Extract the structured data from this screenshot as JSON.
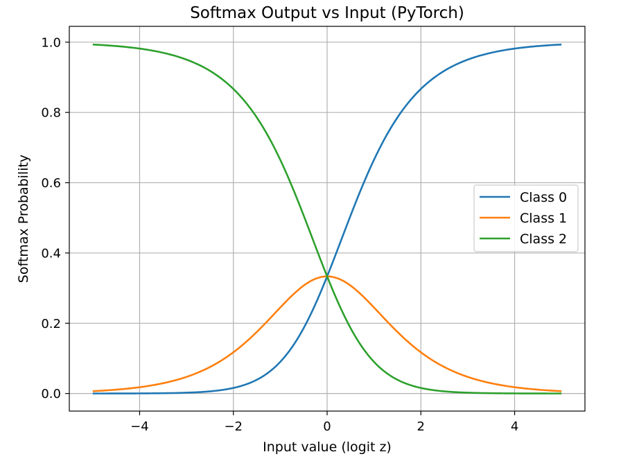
{
  "chart_data": {
    "type": "line",
    "title": "Softmax Output vs Input (PyTorch)",
    "xlabel": "Input value (logit z)",
    "ylabel": "Softmax Probability",
    "xlim": [
      -5.5,
      5.5
    ],
    "ylim": [
      -0.05,
      1.045
    ],
    "xticks": [
      -4,
      -2,
      0,
      2,
      4
    ],
    "xtick_labels": [
      "−4",
      "−2",
      "0",
      "2",
      "4"
    ],
    "yticks": [
      0.0,
      0.2,
      0.4,
      0.6,
      0.8,
      1.0
    ],
    "ytick_labels": [
      "0.0",
      "0.2",
      "0.4",
      "0.6",
      "0.8",
      "1.0"
    ],
    "grid": true,
    "legend_position": "center-right",
    "x": [
      -5,
      -4.5,
      -4,
      -3.5,
      -3,
      -2.5,
      -2,
      -1.5,
      -1,
      -0.5,
      0,
      0.5,
      1,
      1.5,
      2,
      2.5,
      3,
      3.5,
      4,
      4.5,
      5
    ],
    "series": [
      {
        "name": "Class 0",
        "color": "#1f77b4",
        "values": [
          0.0,
          0.0001,
          0.0003,
          0.0009,
          0.0024,
          0.0065,
          0.0159,
          0.0368,
          0.09,
          0.1863,
          0.3333,
          0.5065,
          0.6652,
          0.7856,
          0.8668,
          0.9158,
          0.9503,
          0.9693,
          0.9817,
          0.9888,
          0.9932
        ]
      },
      {
        "name": "Class 1",
        "color": "#ff7f0e",
        "values": [
          0.0067,
          0.011,
          0.018,
          0.0293,
          0.0474,
          0.0755,
          0.1173,
          0.1753,
          0.2447,
          0.3072,
          0.3333,
          0.3072,
          0.2447,
          0.1753,
          0.1173,
          0.0755,
          0.0474,
          0.0293,
          0.018,
          0.011,
          0.0067
        ]
      },
      {
        "name": "Class 2",
        "color": "#2ca02c",
        "values": [
          0.9932,
          0.9888,
          0.9817,
          0.9693,
          0.9503,
          0.9158,
          0.8668,
          0.7856,
          0.6652,
          0.5065,
          0.3333,
          0.1863,
          0.09,
          0.0368,
          0.0159,
          0.0065,
          0.0024,
          0.0009,
          0.0003,
          0.0001,
          0.0
        ]
      }
    ]
  }
}
